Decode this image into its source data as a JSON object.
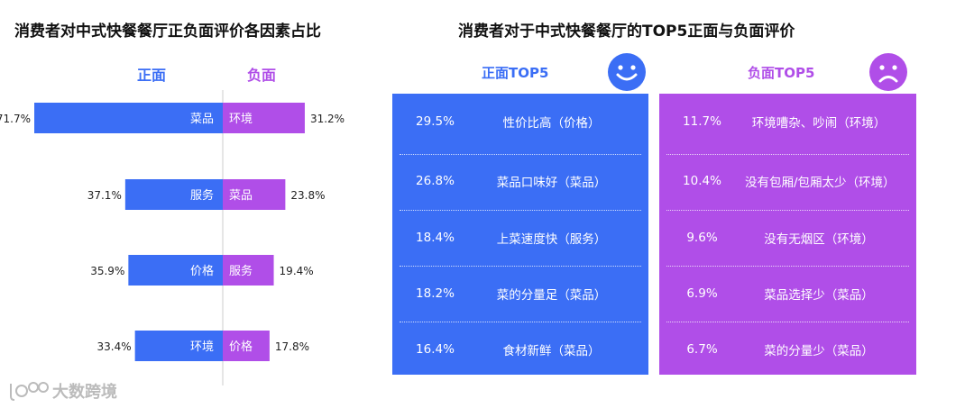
{
  "titles": {
    "left": "消费者对中式快餐餐厅正负面评价各因素占比",
    "right": "消费者对于中式快餐餐厅的TOP5正面与负面评价"
  },
  "chart_data": {
    "type": "bar",
    "orientation": "horizontal-diverging",
    "title": "消费者对中式快餐餐厅正负面评价各因素占比",
    "series": [
      {
        "name": "正面",
        "color": "#3b6ef5",
        "categories": [
          "菜品",
          "服务",
          "价格",
          "环境"
        ],
        "values": [
          71.7,
          37.1,
          35.9,
          33.4
        ]
      },
      {
        "name": "负面",
        "color": "#b04ee8",
        "categories": [
          "环境",
          "菜品",
          "服务",
          "价格"
        ],
        "values": [
          31.2,
          23.8,
          19.4,
          17.8
        ]
      }
    ],
    "value_unit": "%"
  },
  "top5": {
    "positive": {
      "header": "正面TOP5",
      "rows": [
        {
          "pct": "29.5%",
          "label": "性价比高（价格）"
        },
        {
          "pct": "26.8%",
          "label": "菜品口味好（菜品）"
        },
        {
          "pct": "18.4%",
          "label": "上菜速度快（服务）"
        },
        {
          "pct": "18.2%",
          "label": "菜的分量足（菜品）"
        },
        {
          "pct": "16.4%",
          "label": "食材新鲜（菜品）"
        }
      ]
    },
    "negative": {
      "header": "负面TOP5",
      "rows": [
        {
          "pct": "11.7%",
          "label": "环境嘈杂、吵闹（环境）"
        },
        {
          "pct": "10.4%",
          "label": "没有包厢/包厢太少（环境）"
        },
        {
          "pct": "9.6%",
          "label": "没有无烟区（环境）"
        },
        {
          "pct": "6.9%",
          "label": "菜品选择少（菜品）"
        },
        {
          "pct": "6.7%",
          "label": "菜的分量少（菜品）"
        }
      ]
    }
  },
  "icons": {
    "happy": "smiley-face-icon",
    "sad": "sad-face-icon",
    "watermark_logo": "dashuju-logo-icon"
  },
  "watermark": {
    "text": "大数跨境"
  },
  "colors": {
    "positive": "#3b6ef5",
    "negative": "#b04ee8"
  }
}
